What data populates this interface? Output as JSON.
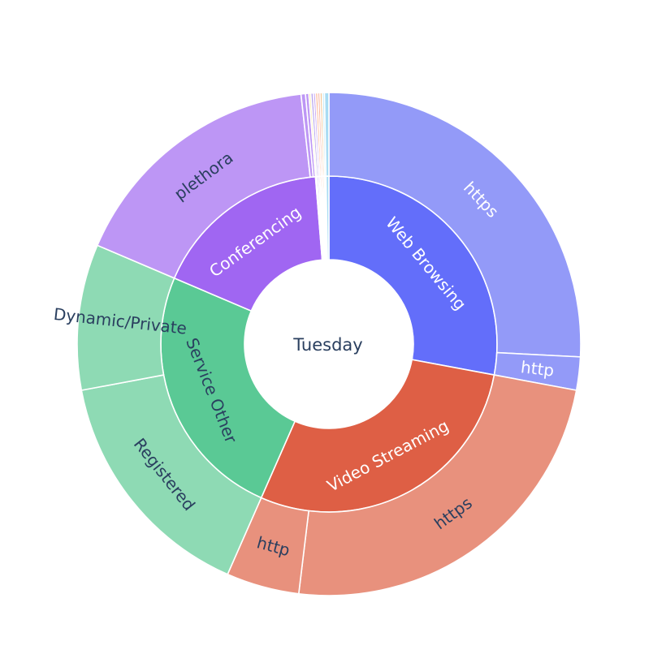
{
  "chart_data": {
    "type": "sunburst",
    "title": "",
    "center_label": "Tuesday",
    "center_color": "#ffffff",
    "start_angle_deg": 90,
    "direction": "clockwise",
    "children": [
      {
        "name": "Web Browsing",
        "value": 1970,
        "color": "#636efa",
        "children": [
          {
            "name": "https",
            "value": 1820,
            "color": "#939af8"
          },
          {
            "name": "http",
            "value": 150,
            "color": "#939af8"
          }
        ]
      },
      {
        "name": "Video Streaming",
        "value": 2020,
        "color": "#de5f45",
        "children": [
          {
            "name": "https",
            "value": 1690,
            "color": "#e8917d"
          },
          {
            "name": "http",
            "value": 330,
            "color": "#e8917d"
          }
        ]
      },
      {
        "name": "Service Other",
        "value": 1750,
        "color": "#5ac995",
        "children": [
          {
            "name": "Registered",
            "value": 1090,
            "color": "#8edab4"
          },
          {
            "name": "Dynamic/Private",
            "value": 660,
            "color": "#8edab4"
          }
        ]
      },
      {
        "name": "Conferencing",
        "value": 1220,
        "color": "#a066f2",
        "children": [
          {
            "name": "plethora",
            "value": 1185,
            "color": "#bd96f5"
          },
          {
            "name": "",
            "value": 20,
            "color": "#bd96f5"
          },
          {
            "name": "",
            "value": 15,
            "color": "#bd96f5"
          }
        ]
      },
      {
        "name": "",
        "value": 9,
        "color": "#fee9a6",
        "children": [
          {
            "name": "",
            "value": 9,
            "color": "#fee9a6"
          }
        ]
      },
      {
        "name": "",
        "value": 11,
        "color": "#b7a4ee",
        "children": [
          {
            "name": "",
            "value": 11,
            "color": "#b7a4ee"
          }
        ]
      },
      {
        "name": "",
        "value": 10,
        "color": "#c9a7f3",
        "children": [
          {
            "name": "",
            "value": 10,
            "color": "#c9a7f3"
          }
        ]
      },
      {
        "name": "",
        "value": 10,
        "color": "#ffb38c",
        "children": [
          {
            "name": "",
            "value": 10,
            "color": "#ffb38c"
          }
        ]
      },
      {
        "name": "",
        "value": 10,
        "color": "#f7b2a0",
        "children": [
          {
            "name": "",
            "value": 10,
            "color": "#f7b2a0"
          }
        ]
      },
      {
        "name": "",
        "value": 10,
        "color": "#f2c38f",
        "children": [
          {
            "name": "",
            "value": 10,
            "color": "#f2c38f"
          }
        ]
      },
      {
        "name": "",
        "value": 10,
        "color": "#c4eaf5",
        "children": [
          {
            "name": "",
            "value": 10,
            "color": "#c4eaf5"
          }
        ]
      },
      {
        "name": "",
        "value": 20,
        "color": "#a8dcf3",
        "children": [
          {
            "name": "",
            "value": 20,
            "color": "#a8dcf3"
          }
        ]
      }
    ]
  }
}
